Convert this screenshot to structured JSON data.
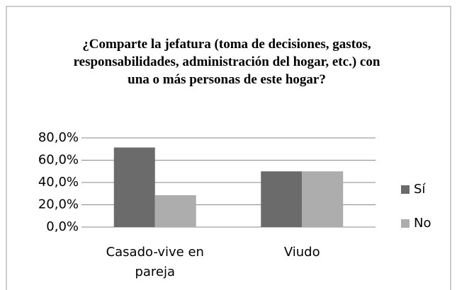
{
  "chart_data": {
    "type": "bar",
    "title": "¿Comparte la jefatura (toma de decisiones, gastos, responsabilidades, administración del hogar, etc.) con una o más personas de este hogar?",
    "categories": [
      "Casado-vive en pareja",
      "Viudo"
    ],
    "series": [
      {
        "name": "Sí",
        "color": "#6b6b6b",
        "values": [
          71.4,
          50
        ]
      },
      {
        "name": "No",
        "color": "#adadad",
        "values": [
          28.6,
          50
        ]
      }
    ],
    "ylim": [
      0,
      80
    ],
    "yticks": [
      {
        "value": 0,
        "label": "0,0%"
      },
      {
        "value": 20,
        "label": "20,0%"
      },
      {
        "value": 40,
        "label": "40,0%"
      },
      {
        "value": 60,
        "label": "60,0%"
      },
      {
        "value": 80,
        "label": "80,0%"
      }
    ],
    "grid": true,
    "legend": "right"
  }
}
